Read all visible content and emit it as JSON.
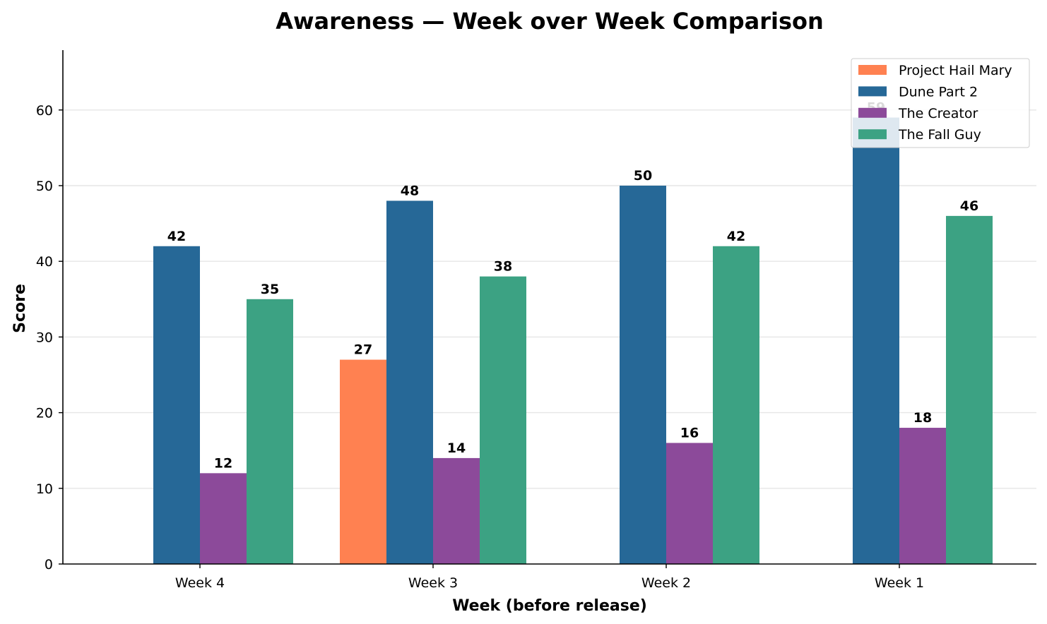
{
  "chart_data": {
    "type": "bar",
    "title": "Awareness — Week over Week Comparison",
    "xlabel": "Week (before release)",
    "ylabel": "Score",
    "categories": [
      "Week 4",
      "Week 3",
      "Week 2",
      "Week 1"
    ],
    "ylim": [
      0,
      68
    ],
    "yticks": [
      0,
      10,
      20,
      30,
      40,
      50,
      60
    ],
    "grid": "horizontal",
    "legend_position": "top-right",
    "series": [
      {
        "name": "Project Hail Mary",
        "color": "#ff8151",
        "values": [
          null,
          27,
          null,
          null
        ]
      },
      {
        "name": "Dune Part 2",
        "color": "#266897",
        "values": [
          42,
          48,
          50,
          59
        ]
      },
      {
        "name": "The Creator",
        "color": "#8c4a9a",
        "values": [
          12,
          14,
          16,
          18
        ]
      },
      {
        "name": "The Fall Guy",
        "color": "#3ca283",
        "values": [
          35,
          38,
          42,
          46
        ]
      }
    ]
  }
}
